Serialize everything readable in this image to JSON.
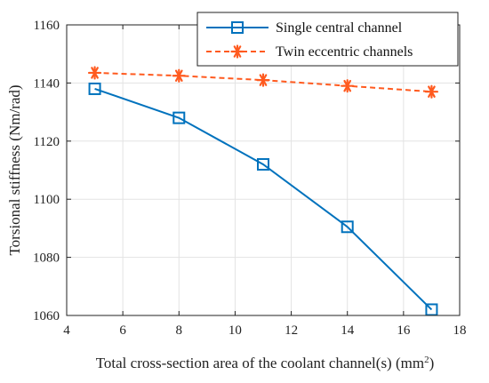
{
  "chart_data": {
    "type": "line",
    "title": "",
    "xlabel": "Total cross-section area of the coolant channel(s) (mm",
    "xlabel_superscript": "2",
    "xlabel_suffix": ")",
    "ylabel": "Torsional stiffness (Nm/rad)",
    "xlim": [
      4,
      18
    ],
    "ylim": [
      1060,
      1160
    ],
    "xticks": [
      4,
      6,
      8,
      10,
      12,
      14,
      16,
      18
    ],
    "yticks": [
      1060,
      1080,
      1100,
      1120,
      1140,
      1160
    ],
    "grid": true,
    "legend_position": "top-right",
    "series": [
      {
        "name": "Single central channel",
        "color": "#0072BD",
        "line_style": "solid",
        "marker": "square",
        "x": [
          5,
          8,
          11,
          14,
          17
        ],
        "y": [
          1138,
          1128,
          1112,
          1090.5,
          1062
        ]
      },
      {
        "name": "Twin eccentric channels",
        "color": "#FF5A1F",
        "line_style": "dashed",
        "marker": "asterisk",
        "x": [
          5,
          8,
          11,
          14,
          17
        ],
        "y": [
          1143.5,
          1142.5,
          1141,
          1139,
          1137
        ]
      }
    ]
  }
}
